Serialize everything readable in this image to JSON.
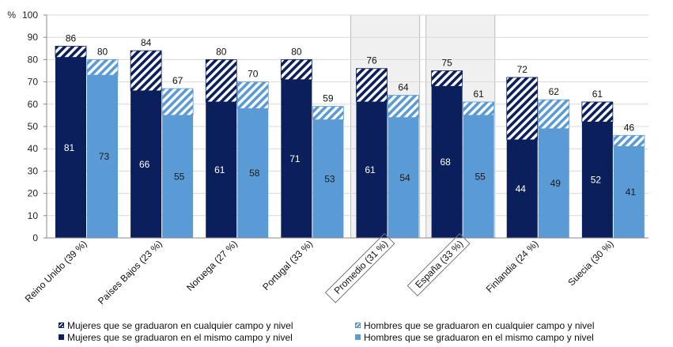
{
  "chart_data": {
    "type": "bar",
    "stacked": true,
    "ylabel": "%",
    "ylim": [
      0,
      100
    ],
    "yticks": [
      0,
      10,
      20,
      30,
      40,
      50,
      60,
      70,
      80,
      90,
      100
    ],
    "gridlines": true,
    "categories": [
      "Reino Unido (39 %)",
      "Países Bajos (23 %)",
      "Noruega (27 %)",
      "Portugal (33 %)",
      "Promedio (31 %)",
      "España (33 %)",
      "Finlandia (24 %)",
      "Suecia (30 %)"
    ],
    "highlighted_categories": [
      "Promedio (31 %)",
      "España (33 %)"
    ],
    "series": [
      {
        "name": "Mujeres que se graduaron en el mismo campo y nivel",
        "group": "women",
        "values": [
          81,
          66,
          61,
          71,
          61,
          68,
          44,
          52
        ],
        "color": "#0b1f5c"
      },
      {
        "name": "Mujeres que se graduaron en cualquier campo y nivel",
        "group": "women",
        "totals": [
          86,
          84,
          80,
          80,
          76,
          75,
          72,
          61
        ],
        "color": "#0b1f5c",
        "pattern": "hatched"
      },
      {
        "name": "Hombres que se graduaron en el mismo campo y nivel",
        "group": "men",
        "values": [
          73,
          55,
          58,
          53,
          54,
          55,
          49,
          41
        ],
        "color": "#5b9bd5"
      },
      {
        "name": "Hombres que se graduaron en cualquier campo y nivel",
        "group": "men",
        "totals": [
          80,
          67,
          70,
          59,
          64,
          61,
          62,
          46
        ],
        "color": "#5b9bd5",
        "pattern": "hatched"
      }
    ],
    "legend": {
      "position": "bottom",
      "rows": [
        [
          "Mujeres que se graduaron en cualquier campo y nivel",
          "Hombres que se graduaron en cualquier campo y nivel"
        ],
        [
          "Mujeres que se graduaron en el mismo campo y nivel",
          "Hombres que se graduaron en el mismo campo y nivel"
        ]
      ]
    }
  },
  "colors": {
    "women_dark": "#0b1f5c",
    "men_light": "#5b9bd5",
    "highlight_bg": "#f0f0f0",
    "grid": "#d9d9d9"
  }
}
